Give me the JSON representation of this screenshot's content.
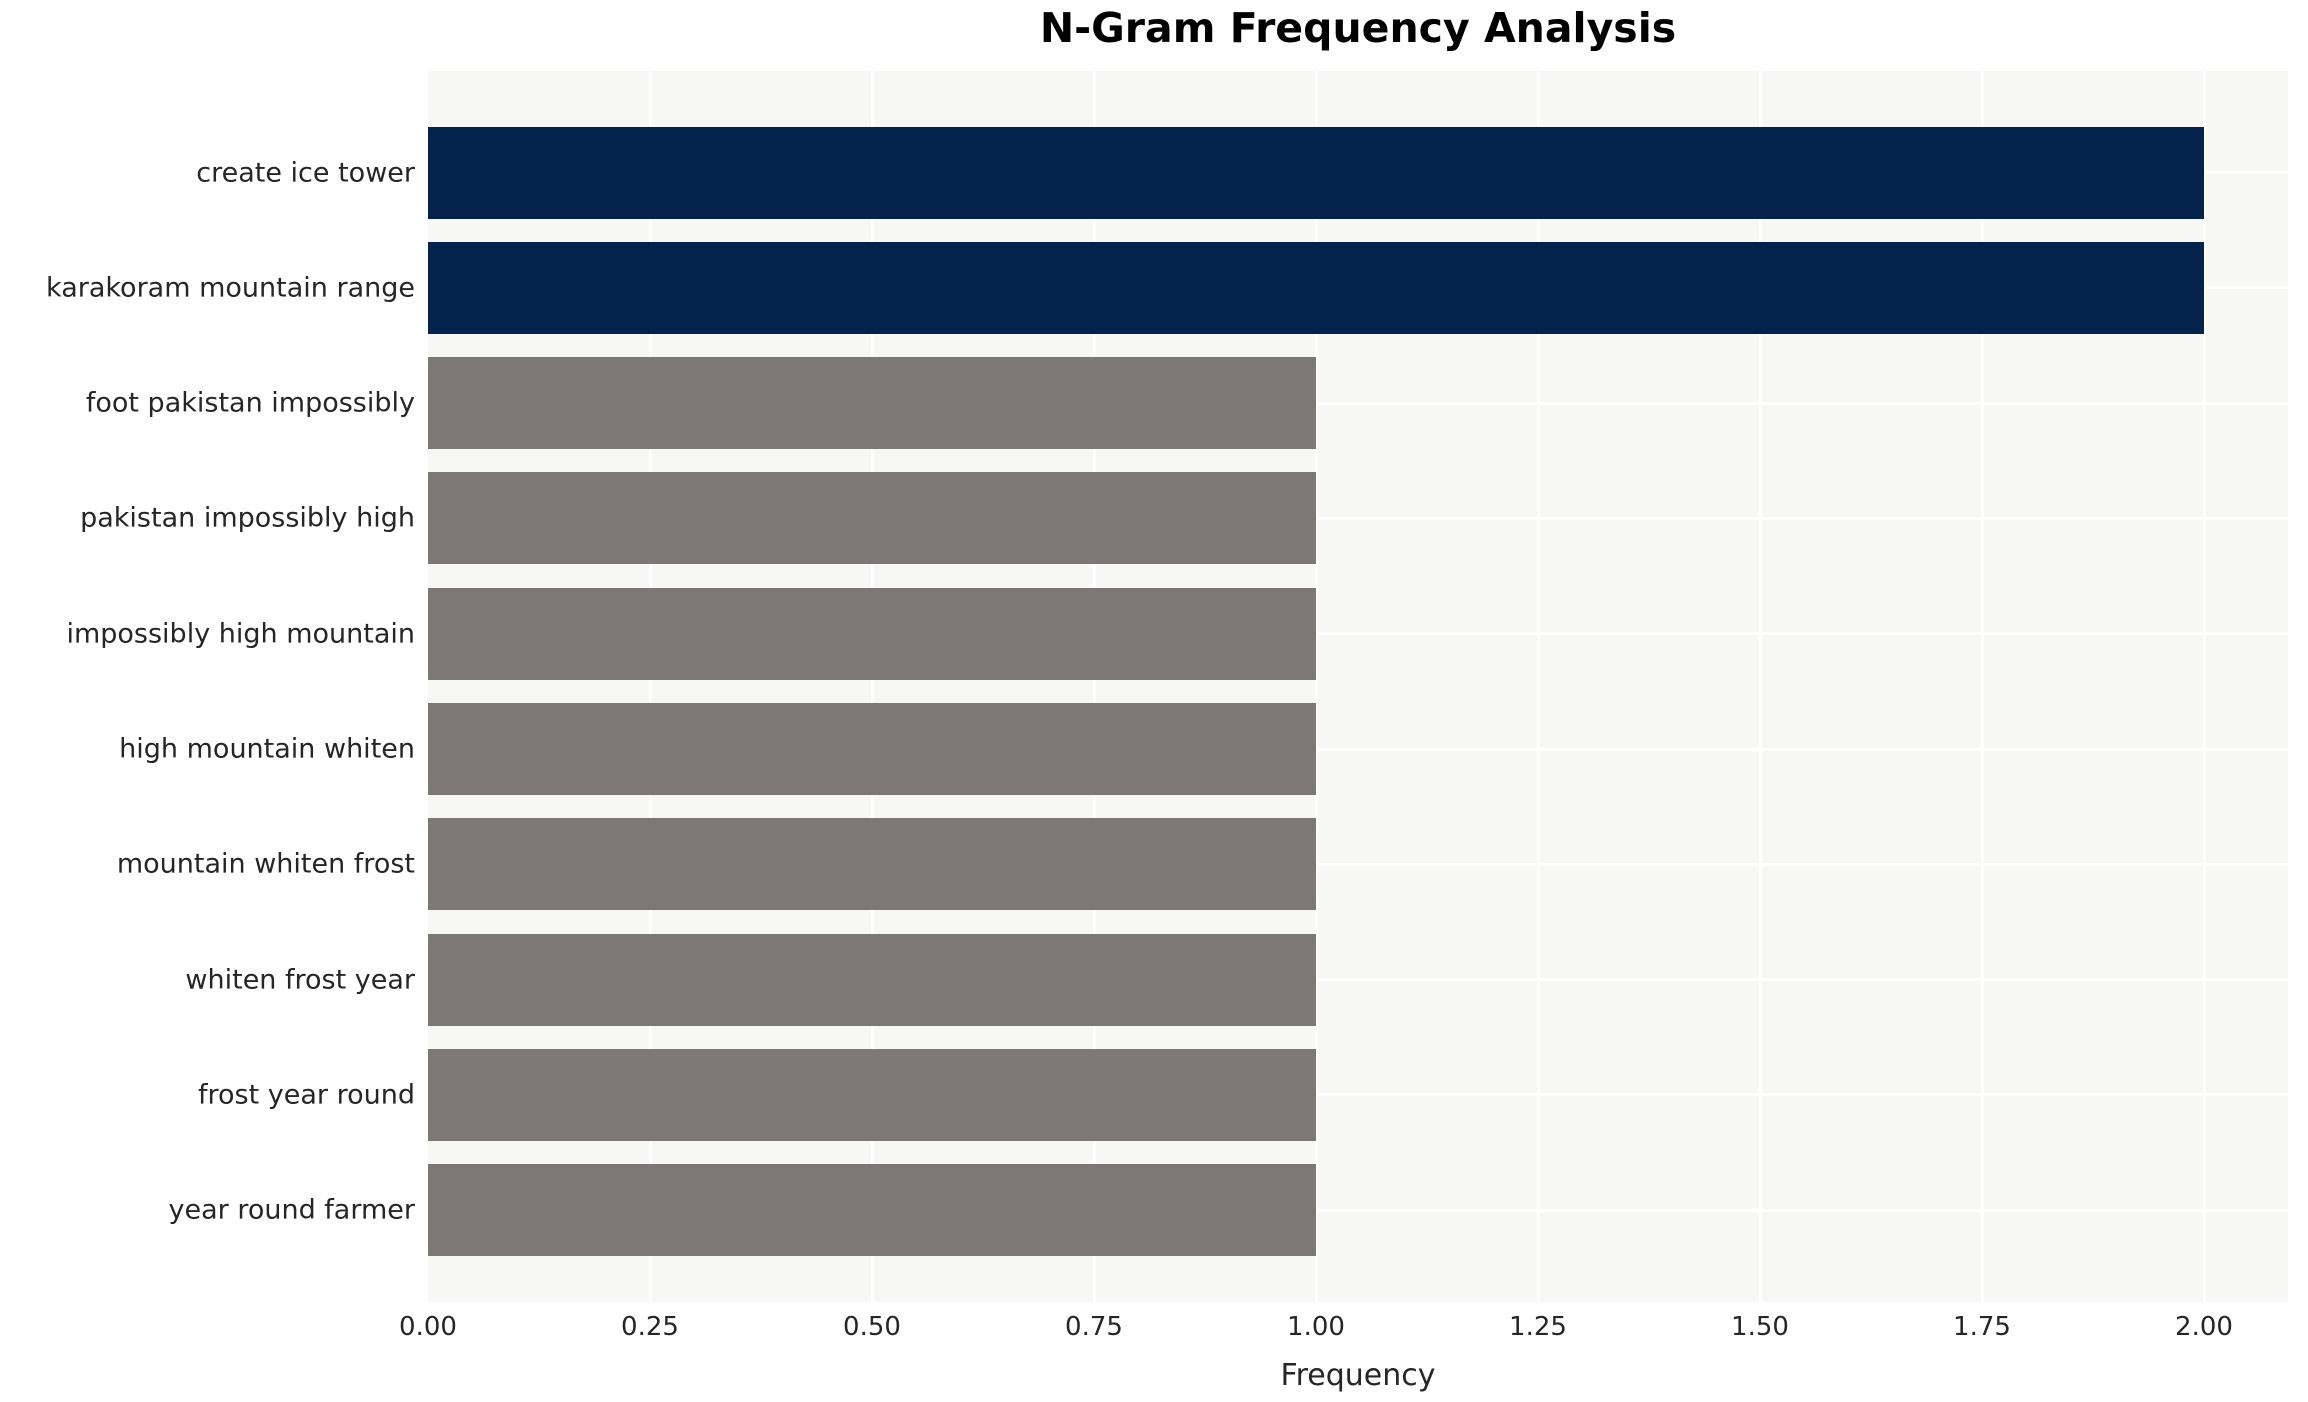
{
  "chart_data": {
    "type": "bar",
    "orientation": "horizontal",
    "title": "N-Gram Frequency Analysis",
    "xlabel": "Frequency",
    "ylabel": "",
    "categories": [
      "create ice tower",
      "karakoram mountain range",
      "foot pakistan impossibly",
      "pakistan impossibly high",
      "impossibly high mountain",
      "high mountain whiten",
      "mountain whiten frost",
      "whiten frost year",
      "frost year round",
      "year round farmer"
    ],
    "values": [
      2,
      2,
      1,
      1,
      1,
      1,
      1,
      1,
      1,
      1
    ],
    "bar_colors": [
      "#03234d",
      "#03234d",
      "#7c7974",
      "#7c7974",
      "#7c7974",
      "#7c7974",
      "#7c7974",
      "#7c7974",
      "#7c7974",
      "#7c7974"
    ],
    "x_tick_values": [
      0.0,
      0.25,
      0.5,
      0.75,
      1.0,
      1.25,
      1.5,
      1.75,
      2.0
    ],
    "x_tick_labels": [
      "0.00",
      "0.25",
      "0.50",
      "0.75",
      "1.00",
      "1.25",
      "1.50",
      "1.75",
      "2.00"
    ],
    "xlim": [
      0,
      2.095
    ],
    "grid": "on",
    "legend": "none",
    "colors": {
      "highlight": "#03234d",
      "default": "#7c7974",
      "plot_background": "#f7f7f6",
      "gridline": "#ffffff",
      "figure_background": "#ffffff",
      "text": "#262626"
    }
  }
}
